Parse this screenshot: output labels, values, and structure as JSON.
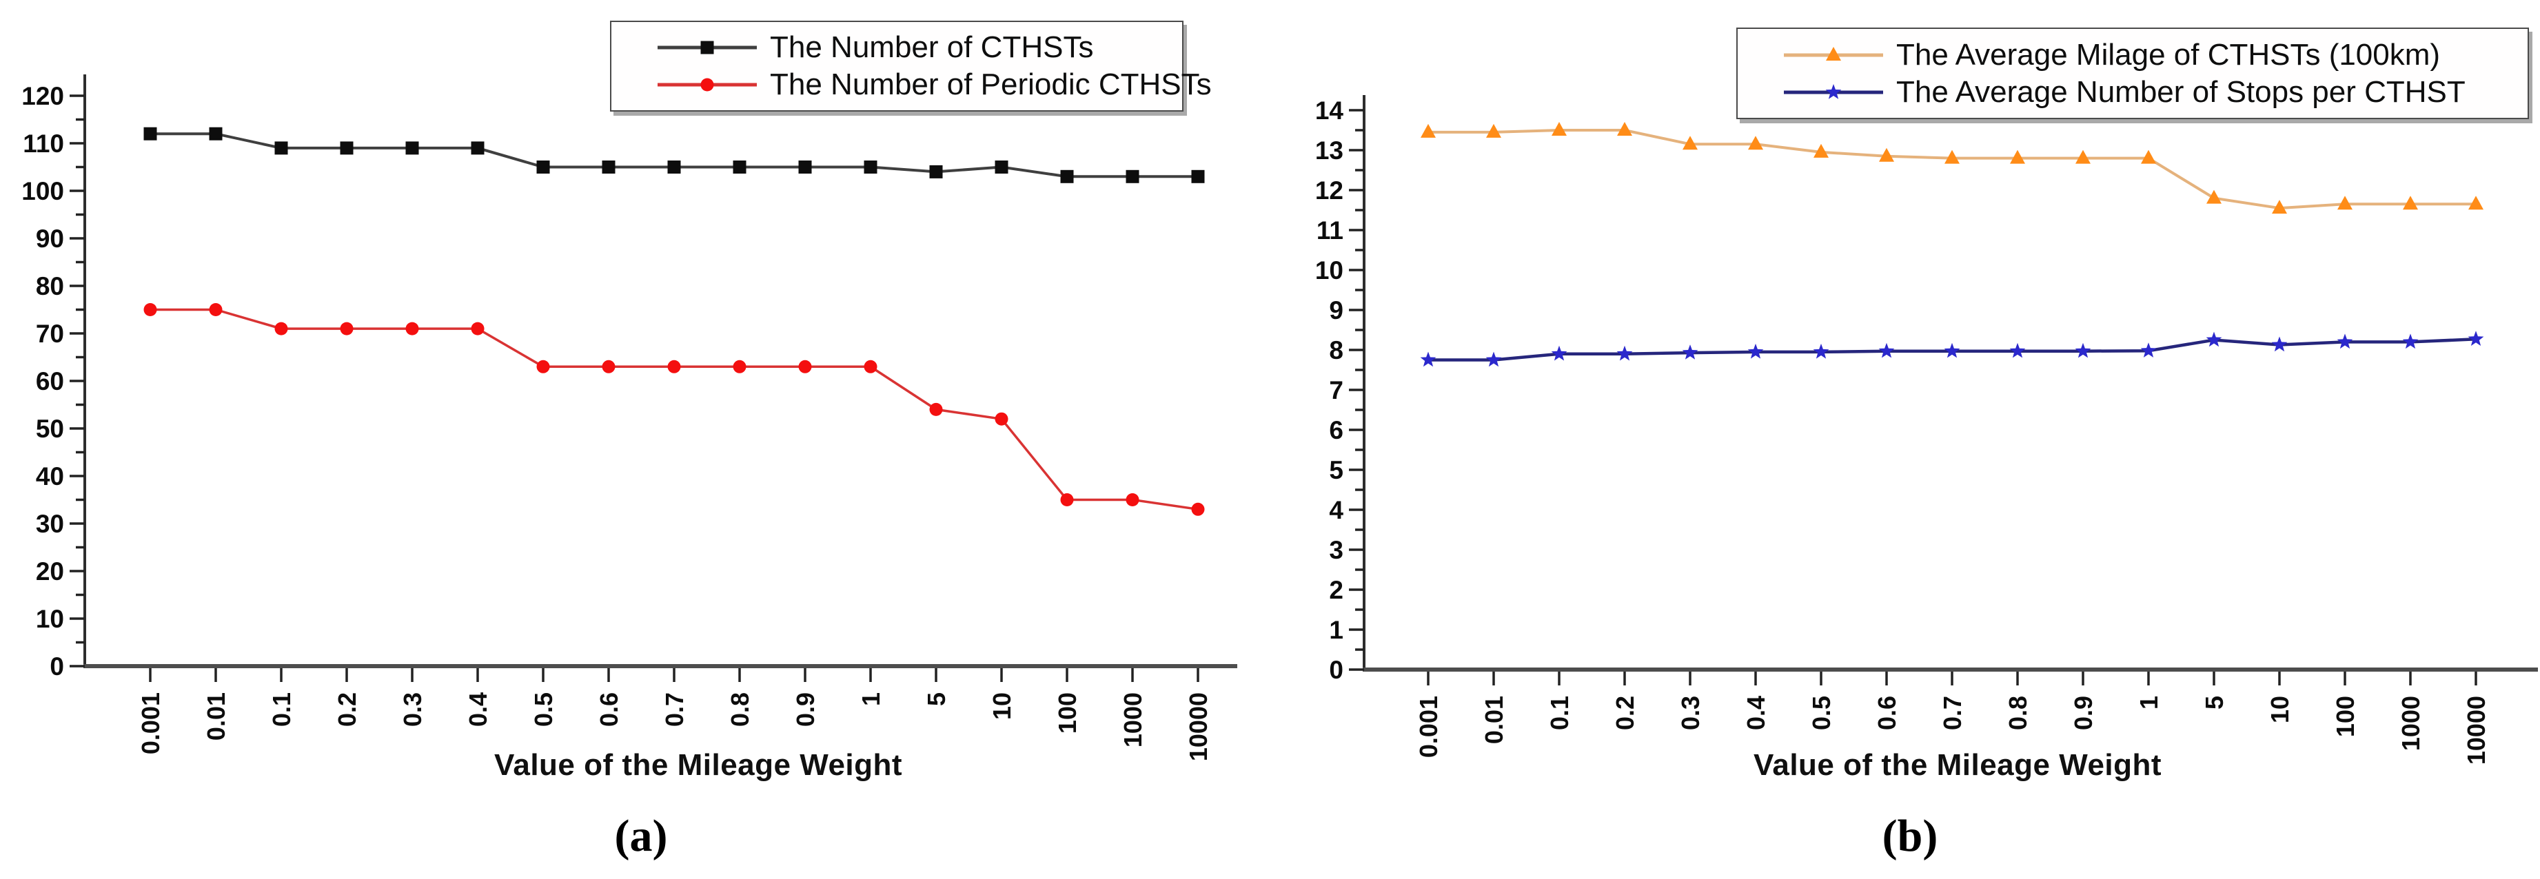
{
  "chart_data": [
    {
      "id": "a",
      "type": "line",
      "caption": "(a)",
      "xlabel": "Value of the Mileage Weight",
      "categories": [
        "0.001",
        "0.01",
        "0.1",
        "0.2",
        "0.3",
        "0.4",
        "0.5",
        "0.6",
        "0.7",
        "0.8",
        "0.9",
        "1",
        "5",
        "10",
        "100",
        "1000",
        "10000"
      ],
      "ylim": [
        0,
        120
      ],
      "ytick": 10,
      "yminor": 5,
      "grid": false,
      "legend_position": "top-center-inside",
      "series": [
        {
          "name": "The Number of CTHSTs",
          "marker": "square",
          "marker_color": "#0d0d0d",
          "line_color": "#3f3f3f",
          "line_width": 4,
          "values": [
            112,
            112,
            109,
            109,
            109,
            109,
            105,
            105,
            105,
            105,
            105,
            105,
            104,
            105,
            103,
            103,
            103
          ]
        },
        {
          "name": "The Number of Periodic CTHSTs",
          "marker": "circle",
          "marker_color": "#f40f0f",
          "line_color": "#d93333",
          "line_width": 3.5,
          "values": [
            75,
            75,
            71,
            71,
            71,
            71,
            63,
            63,
            63,
            63,
            63,
            63,
            54,
            52,
            35,
            35,
            33
          ]
        }
      ]
    },
    {
      "id": "b",
      "type": "line",
      "caption": "(b)",
      "xlabel": "Value of the Mileage Weight",
      "categories": [
        "0.001",
        "0.01",
        "0.1",
        "0.2",
        "0.3",
        "0.4",
        "0.5",
        "0.6",
        "0.7",
        "0.8",
        "0.9",
        "1",
        "5",
        "10",
        "100",
        "1000",
        "10000"
      ],
      "ylim": [
        0,
        14
      ],
      "ytick": 1,
      "yminor": 0.5,
      "grid": false,
      "legend_position": "top-right-inside",
      "series": [
        {
          "name": "The Average Milage of CTHSTs (100km)",
          "marker": "triangle",
          "marker_color": "#ff8c17",
          "line_color": "#e5b27c",
          "line_width": 4,
          "values": [
            13.45,
            13.45,
            13.5,
            13.5,
            13.15,
            13.15,
            12.95,
            12.85,
            12.8,
            12.8,
            12.8,
            12.8,
            11.8,
            11.55,
            11.65,
            11.65,
            11.65
          ]
        },
        {
          "name": "The Average Number of Stops per CTHST",
          "marker": "star",
          "marker_color": "#2b28cc",
          "line_color": "#26267c",
          "line_width": 4.5,
          "values": [
            7.75,
            7.75,
            7.9,
            7.9,
            7.93,
            7.95,
            7.95,
            7.97,
            7.97,
            7.97,
            7.97,
            7.98,
            8.25,
            8.13,
            8.2,
            8.2,
            8.27
          ]
        }
      ]
    }
  ]
}
